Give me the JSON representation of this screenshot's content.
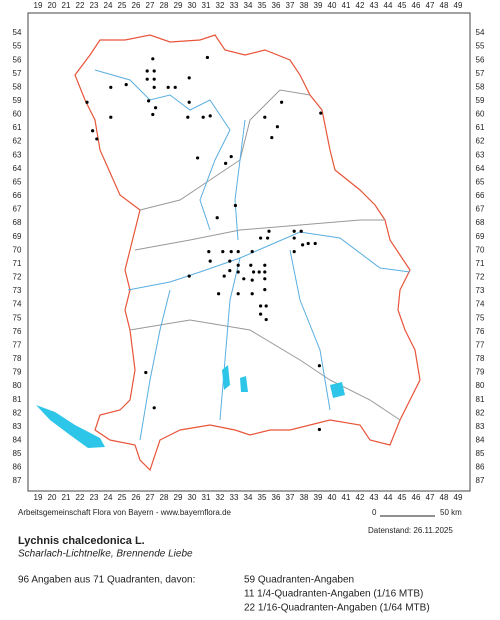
{
  "map": {
    "xticks": [
      19,
      20,
      21,
      22,
      23,
      24,
      25,
      26,
      27,
      28,
      29,
      30,
      31,
      32,
      33,
      34,
      35,
      36,
      37,
      38,
      39,
      40,
      41,
      42,
      43,
      44,
      45,
      46,
      47,
      48,
      49
    ],
    "yticks": [
      54,
      55,
      56,
      57,
      58,
      59,
      60,
      61,
      62,
      63,
      64,
      65,
      66,
      67,
      68,
      69,
      70,
      71,
      72,
      73,
      74,
      75,
      76,
      77,
      78,
      79,
      80,
      81,
      82,
      83,
      84,
      85,
      86,
      87
    ],
    "dots": [
      [
        31.1,
        55.8
      ],
      [
        27.2,
        55.9
      ],
      [
        26.8,
        56.8
      ],
      [
        27.3,
        56.8
      ],
      [
        26.8,
        57.4
      ],
      [
        27.3,
        57.4
      ],
      [
        27.3,
        58
      ],
      [
        28.3,
        58
      ],
      [
        28.8,
        58
      ],
      [
        24.2,
        58
      ],
      [
        25.3,
        57.8
      ],
      [
        29.8,
        57.3
      ],
      [
        22.5,
        59.1
      ],
      [
        26.9,
        59
      ],
      [
        27.4,
        59.5
      ],
      [
        29.8,
        59.1
      ],
      [
        36.4,
        59.1
      ],
      [
        39.2,
        59.9
      ],
      [
        24.2,
        60.2
      ],
      [
        27.2,
        60
      ],
      [
        29.7,
        60.2
      ],
      [
        30.8,
        60.2
      ],
      [
        31.3,
        60.1
      ],
      [
        35.2,
        60.2
      ],
      [
        35.7,
        61.7
      ],
      [
        22.9,
        61.2
      ],
      [
        23.2,
        61.8
      ],
      [
        36.1,
        60.9
      ],
      [
        30.4,
        63.2
      ],
      [
        32.8,
        63.1
      ],
      [
        32.4,
        63.6
      ],
      [
        33.1,
        66.7
      ],
      [
        31.8,
        67.6
      ],
      [
        35.5,
        68.6
      ],
      [
        37.3,
        68.6
      ],
      [
        37.8,
        68.6
      ],
      [
        34.9,
        69.1
      ],
      [
        35.4,
        69.1
      ],
      [
        37.3,
        69.1
      ],
      [
        37.9,
        69.6
      ],
      [
        38.3,
        69.5
      ],
      [
        38.8,
        69.5
      ],
      [
        37.3,
        70.1
      ],
      [
        31.2,
        70.1
      ],
      [
        32.2,
        70.1
      ],
      [
        32.8,
        70.1
      ],
      [
        33.3,
        70.1
      ],
      [
        34.3,
        70.1
      ],
      [
        31.3,
        70.8
      ],
      [
        32.7,
        70.8
      ],
      [
        33.3,
        71.1
      ],
      [
        34.2,
        71.1
      ],
      [
        35.2,
        71.1
      ],
      [
        29.8,
        71.9
      ],
      [
        32.3,
        71.9
      ],
      [
        32.7,
        71.5
      ],
      [
        33.3,
        71.6
      ],
      [
        34.4,
        71.6
      ],
      [
        34.8,
        71.6
      ],
      [
        35.2,
        71.6
      ],
      [
        33.7,
        72.1
      ],
      [
        34.3,
        72.2
      ],
      [
        35.2,
        72.1
      ],
      [
        31.9,
        73.2
      ],
      [
        33.3,
        73.2
      ],
      [
        34.3,
        73.2
      ],
      [
        35.2,
        72.9
      ],
      [
        34.9,
        74.1
      ],
      [
        35.3,
        74.1
      ],
      [
        34.9,
        74.7
      ],
      [
        35.3,
        75.1
      ],
      [
        26.7,
        79
      ],
      [
        27.3,
        81.6
      ],
      [
        39.1,
        78.5
      ],
      [
        39.1,
        83.2
      ]
    ]
  },
  "footer": {
    "credit": "Arbeitsgemeinschaft Flora von Bayern - www.bayernflora.de",
    "scale_start": "0",
    "scale_end": "50 km",
    "date": "Datenstand: 26.11.2025"
  },
  "species": {
    "name": "Lychnis chalcedonica L.",
    "common": "Scharlach-Lichtnelke, Brennende Liebe"
  },
  "stats": {
    "summary": "96 Angaben aus 71 Quadranten, davon:",
    "lines": [
      "59 Quadranten-Angaben",
      "11 1/4-Quadranten-Angaben (1/16 MTB)",
      "22 1/16-Quadranten-Angaben (1/64 MTB)"
    ]
  }
}
